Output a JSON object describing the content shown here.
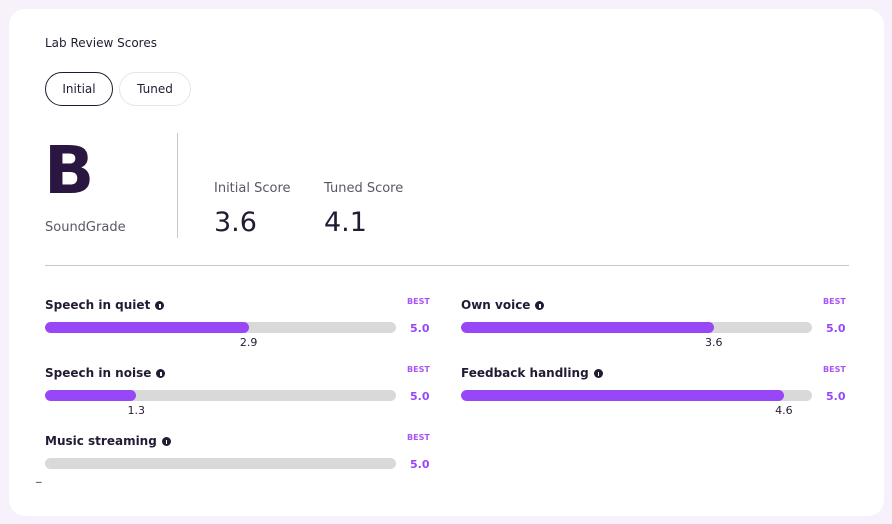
{
  "header": {
    "title": "Lab Review Scores"
  },
  "tabs": [
    "Initial",
    "Tuned"
  ],
  "grade": {
    "letter": "B",
    "label": "SoundGrade"
  },
  "scores": [
    {
      "label": "Initial Score",
      "value": "3.6"
    },
    {
      "label": "Tuned Score",
      "value": "4.1"
    }
  ],
  "metrics": [
    {
      "name": "Speech in quiet",
      "value": 2.9,
      "best": "BEST",
      "max": {
        "value": 5,
        "label": "5.0"
      }
    },
    {
      "name": "Own voice",
      "value": 3.6,
      "best": "BEST",
      "max": {
        "value": 5,
        "label": "5.0"
      }
    },
    {
      "name": "Speech in noise",
      "value": 1.3,
      "best": "BEST",
      "max": {
        "value": 5,
        "label": "5.0"
      }
    },
    {
      "name": "Feedback handling",
      "value": 4.6,
      "best": "BEST",
      "max": {
        "value": 5,
        "label": "5.0"
      }
    },
    {
      "name": "Music streaming",
      "value": null,
      "value_label": "_",
      "best": "BEST",
      "max": {
        "value": 5,
        "label": "5.0"
      }
    }
  ]
}
